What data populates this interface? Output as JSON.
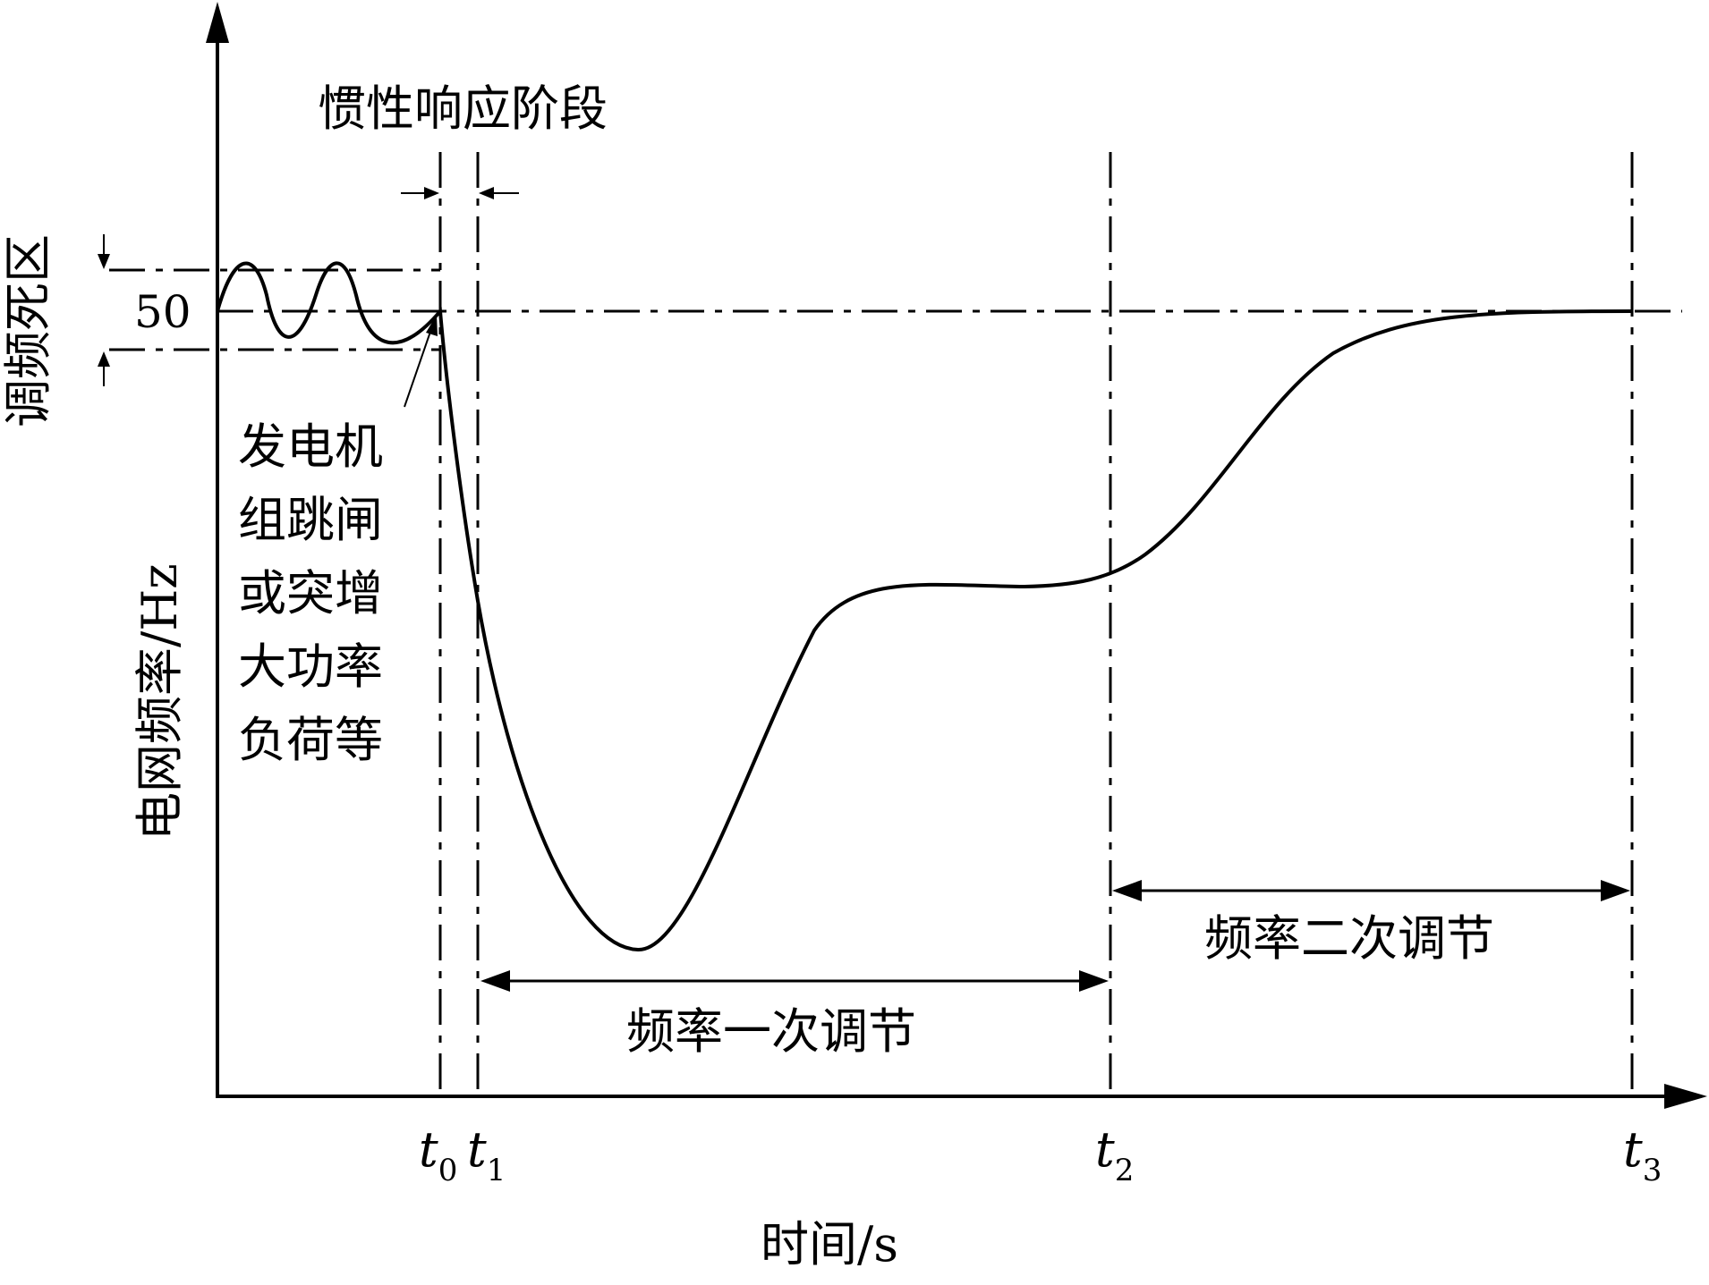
{
  "axes": {
    "y_label": "电网频率/Hz",
    "x_label": "时间/s",
    "y_tick": "50"
  },
  "dead_band": {
    "label": "调频死区"
  },
  "annotations": {
    "inertia_phase": "惯性响应阶段",
    "event_lines": [
      "发电机",
      "组跳闸",
      "或突增",
      "大功率",
      "负荷等"
    ],
    "primary_regulation": "频率一次调节",
    "secondary_regulation": "频率二次调节"
  },
  "time_marks": [
    {
      "name": "t",
      "sub": "0"
    },
    {
      "name": "t",
      "sub": "1"
    },
    {
      "name": "t",
      "sub": "2"
    },
    {
      "name": "t",
      "sub": "3"
    }
  ]
}
